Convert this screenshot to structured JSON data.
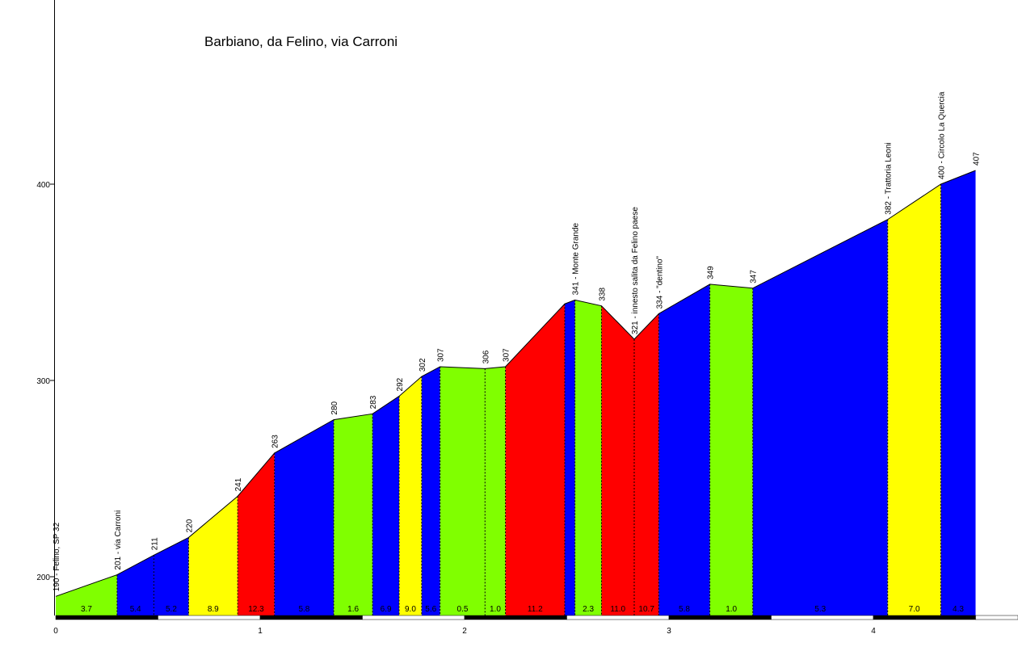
{
  "chart_data": {
    "type": "area",
    "title": "Barbiano, da Felino, via Carroni",
    "xlabel": "",
    "ylabel": "",
    "xlim": [
      0,
      4.7
    ],
    "ylim": [
      180,
      500
    ],
    "x_ticks": [
      0,
      1,
      2,
      3,
      4
    ],
    "x_tick_labels": [
      "0",
      "1",
      "2",
      "3",
      "4"
    ],
    "y_ticks": [
      200,
      300,
      400
    ],
    "y_tick_labels": [
      "200",
      "300",
      "400"
    ],
    "colors": {
      "green": "#80ff00",
      "blue": "#0000ff",
      "yellow": "#ffff00",
      "red": "#ff0000"
    },
    "points": [
      {
        "x": 0.0,
        "y": 190,
        "label": "190 - Felino, SP 32"
      },
      {
        "x": 0.3,
        "y": 201,
        "label": "201 - via Carroni"
      },
      {
        "x": 0.48,
        "y": 211,
        "label": "211"
      },
      {
        "x": 0.65,
        "y": 220,
        "label": "220"
      },
      {
        "x": 0.89,
        "y": 241,
        "label": "241"
      },
      {
        "x": 1.07,
        "y": 263,
        "label": "263"
      },
      {
        "x": 1.36,
        "y": 280,
        "label": "280"
      },
      {
        "x": 1.55,
        "y": 283,
        "label": "283"
      },
      {
        "x": 1.68,
        "y": 292,
        "label": "292"
      },
      {
        "x": 1.79,
        "y": 302,
        "label": "302"
      },
      {
        "x": 1.88,
        "y": 307,
        "label": "307"
      },
      {
        "x": 2.1,
        "y": 306,
        "label": "306"
      },
      {
        "x": 2.2,
        "y": 307,
        "label": "307"
      },
      {
        "x": 2.49,
        "y": 339,
        "label": ""
      },
      {
        "x": 2.54,
        "y": 341,
        "label": "341 - Monte Grande"
      },
      {
        "x": 2.67,
        "y": 338,
        "label": "338"
      },
      {
        "x": 2.83,
        "y": 321,
        "label": "321 - innesto salita da Felino paese"
      },
      {
        "x": 2.95,
        "y": 334,
        "label": "334 - \"dentino\""
      },
      {
        "x": 3.2,
        "y": 349,
        "label": "349"
      },
      {
        "x": 3.41,
        "y": 347,
        "label": "347"
      },
      {
        "x": 4.07,
        "y": 382,
        "label": "382 - Trattoria Leoni"
      },
      {
        "x": 4.33,
        "y": 400,
        "label": "400 - Circolo La Quercia"
      },
      {
        "x": 4.5,
        "y": 407,
        "label": "407"
      }
    ],
    "segments": [
      {
        "from": 0.0,
        "to": 0.3,
        "grade": "3.7",
        "color": "green"
      },
      {
        "from": 0.3,
        "to": 0.48,
        "grade": "5.4",
        "color": "blue"
      },
      {
        "from": 0.48,
        "to": 0.65,
        "grade": "5.2",
        "color": "blue"
      },
      {
        "from": 0.65,
        "to": 0.89,
        "grade": "8.9",
        "color": "yellow"
      },
      {
        "from": 0.89,
        "to": 1.07,
        "grade": "12.3",
        "color": "red"
      },
      {
        "from": 1.07,
        "to": 1.36,
        "grade": "5.8",
        "color": "blue"
      },
      {
        "from": 1.36,
        "to": 1.55,
        "grade": "1.6",
        "color": "green"
      },
      {
        "from": 1.55,
        "to": 1.68,
        "grade": "6.9",
        "color": "blue"
      },
      {
        "from": 1.68,
        "to": 1.79,
        "grade": "9.0",
        "color": "yellow"
      },
      {
        "from": 1.79,
        "to": 1.88,
        "grade": "5.6",
        "color": "blue"
      },
      {
        "from": 1.88,
        "to": 2.1,
        "grade": "0.5",
        "color": "green"
      },
      {
        "from": 2.1,
        "to": 2.2,
        "grade": "1.0",
        "color": "green"
      },
      {
        "from": 2.2,
        "to": 2.49,
        "grade": "11.2",
        "color": "red"
      },
      {
        "from": 2.49,
        "to": 2.54,
        "grade": "",
        "color": "blue"
      },
      {
        "from": 2.54,
        "to": 2.67,
        "grade": "2.3",
        "color": "green"
      },
      {
        "from": 2.67,
        "to": 2.83,
        "grade": "11.0",
        "color": "red"
      },
      {
        "from": 2.83,
        "to": 2.95,
        "grade": "10.7",
        "color": "red"
      },
      {
        "from": 2.95,
        "to": 3.2,
        "grade": "5.8",
        "color": "blue"
      },
      {
        "from": 3.2,
        "to": 3.41,
        "grade": "1.0",
        "color": "green"
      },
      {
        "from": 3.41,
        "to": 4.07,
        "grade": "5.3",
        "color": "blue"
      },
      {
        "from": 4.07,
        "to": 4.33,
        "grade": "7.0",
        "color": "yellow"
      },
      {
        "from": 4.33,
        "to": 4.5,
        "grade": "4.3",
        "color": "blue"
      }
    ],
    "grid": false,
    "legend": "none"
  }
}
